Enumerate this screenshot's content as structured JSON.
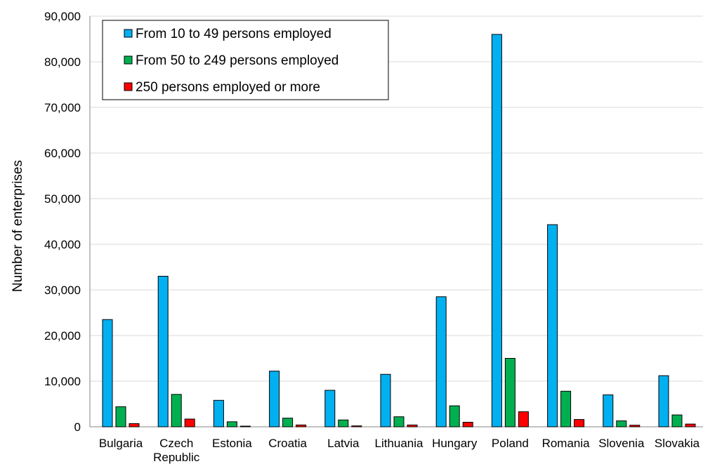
{
  "chart_data": {
    "type": "bar",
    "ylabel": "Number of enterprises",
    "xlabel": "",
    "ylim": [
      0,
      90000
    ],
    "yticks": [
      "0",
      "10,000",
      "20,000",
      "30,000",
      "40,000",
      "50,000",
      "60,000",
      "70,000",
      "80,000",
      "90,000"
    ],
    "grid": "horizontal",
    "legend_position": "top-left",
    "categories": [
      "Bulgaria",
      "Czech Republic",
      "Estonia",
      "Croatia",
      "Latvia",
      "Lithuania",
      "Hungary",
      "Poland",
      "Romania",
      "Slovenia",
      "Slovakia"
    ],
    "series": [
      {
        "name": "From 10 to 49 persons employed",
        "color": "#00B0F0",
        "values": [
          23500,
          33000,
          5800,
          12200,
          8000,
          11500,
          28500,
          86000,
          44300,
          7000,
          11200
        ]
      },
      {
        "name": "From 50 to 249 persons employed",
        "color": "#00B050",
        "values": [
          4400,
          7100,
          1100,
          1900,
          1500,
          2200,
          4600,
          15000,
          7800,
          1300,
          2600
        ]
      },
      {
        "name": "250 persons employed or more",
        "color": "#FF0000",
        "values": [
          700,
          1700,
          150,
          400,
          200,
          400,
          1000,
          3300,
          1600,
          350,
          600
        ]
      }
    ]
  }
}
